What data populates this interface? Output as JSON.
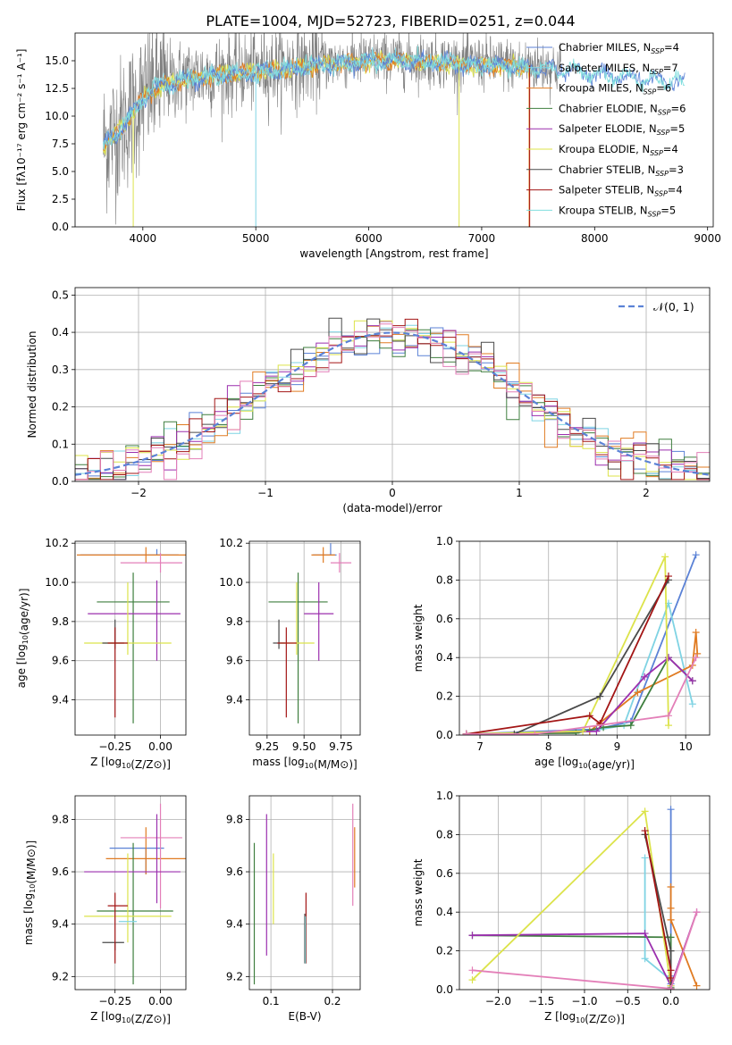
{
  "page_title": "PLATE=1004, MJD=52723, FIBERID=0251, z=0.044",
  "colors": {
    "chabrier_miles": "#5b82d6",
    "salpeter_miles": "#7fd3e3",
    "kroupa_miles": "#e07b22",
    "chabrier_elodie": "#3f7f3f",
    "salpeter_elodie": "#9b2fae",
    "kroupa_elodie": "#dce34a",
    "chabrier_stelib": "#4a4a4a",
    "salpeter_stelib": "#a31515",
    "kroupa_stelib": "#80dede",
    "pink": "#e37fb8",
    "spectrum": "#808080",
    "grid": "#b0b0b0"
  },
  "legend_spectrum": [
    {
      "name": "Chabrier MILES, N",
      "sub": "SSP",
      "val": "=4",
      "color": "#5b82d6"
    },
    {
      "name": "Salpeter MILES, N",
      "sub": "SSP",
      "val": "=7",
      "color": "#7fd3e3"
    },
    {
      "name": "Kroupa MILES, N",
      "sub": "SSP",
      "val": "=6",
      "color": "#e07b22"
    },
    {
      "name": "Chabrier ELODIE, N",
      "sub": "SSP",
      "val": "=6",
      "color": "#3f7f3f"
    },
    {
      "name": "Salpeter ELODIE, N",
      "sub": "SSP",
      "val": "=5",
      "color": "#9b2fae"
    },
    {
      "name": "Kroupa ELODIE, N",
      "sub": "SSP",
      "val": "=4",
      "color": "#dce34a"
    },
    {
      "name": "Chabrier STELIB, N",
      "sub": "SSP",
      "val": "=3",
      "color": "#4a4a4a"
    },
    {
      "name": "Salpeter STELIB, N",
      "sub": "SSP",
      "val": "=4",
      "color": "#a31515"
    },
    {
      "name": "Kroupa STELIB, N",
      "sub": "SSP",
      "val": "=5",
      "color": "#80dede"
    }
  ],
  "chart_data": [
    {
      "id": "spectrum",
      "type": "line",
      "title": "PLATE=1004, MJD=52723, FIBERID=0251, z=0.044",
      "xlabel": "wavelength [Angstrom, rest frame]",
      "ylabel": "Flux [fλ10⁻¹⁷ erg cm⁻² s⁻¹ A⁻¹]",
      "xlim": [
        3400,
        9050
      ],
      "ylim": [
        0,
        17.5
      ],
      "xticks": [
        4000,
        5000,
        6000,
        7000,
        8000,
        9000
      ],
      "yticks": [
        0.0,
        2.5,
        5.0,
        7.5,
        10.0,
        12.5,
        15.0
      ],
      "ytick_labels": [
        "0.0",
        "2.5",
        "5.0",
        "7.5",
        "10.0",
        "12.5",
        "15.0"
      ],
      "grid": false,
      "legend": "right",
      "data_range_x": [
        3650,
        8800
      ],
      "continuum": {
        "x": [
          3650,
          3800,
          3950,
          4100,
          4300,
          4600,
          5000,
          5400,
          5800,
          6200,
          6600,
          7000,
          7400,
          7800,
          8200,
          8800
        ],
        "y": [
          7.5,
          9.0,
          11.0,
          12.8,
          13.3,
          13.8,
          14.2,
          14.6,
          15.0,
          15.2,
          15.0,
          14.8,
          14.6,
          14.3,
          13.8,
          13.2
        ]
      }
    },
    {
      "id": "residuals",
      "type": "histogram",
      "xlabel": "(data-model)/error",
      "ylabel": "Normed distribution",
      "xlim": [
        -2.5,
        2.5
      ],
      "ylim": [
        0,
        0.52
      ],
      "xticks": [
        -2,
        -1,
        0,
        1,
        2
      ],
      "xtick_labels": [
        "−2",
        "−1",
        "0",
        "1",
        "2"
      ],
      "yticks": [
        0.0,
        0.1,
        0.2,
        0.3,
        0.4,
        0.5
      ],
      "ytick_labels": [
        "0.0",
        "0.1",
        "0.2",
        "0.3",
        "0.4",
        "0.5"
      ],
      "grid": true,
      "legend_label": "𝒩(0, 1)",
      "legend": "top-right",
      "bin_width": 0.1
    },
    {
      "id": "age-vs-z",
      "type": "errorbar",
      "xlabel": "Z [log10(Z/Z⊙)]",
      "ylabel": "age  [log10(age/yr)]",
      "xlim": [
        -0.47,
        0.14
      ],
      "ylim": [
        9.22,
        10.21
      ],
      "xticks": [
        -0.25,
        0.0
      ],
      "xtick_labels": [
        "−0.25",
        "0.00"
      ],
      "yticks": [
        9.4,
        9.6,
        9.8,
        10.0,
        10.2
      ],
      "ytick_labels": [
        "9.4",
        "9.6",
        "9.8",
        "10.0",
        "10.2"
      ],
      "grid": true,
      "points": [
        {
          "x": -0.02,
          "y": 10.14,
          "xerr": [
            0.42,
            0.12
          ],
          "yerr": [
            0,
            0.03
          ],
          "c": "chabrier_miles"
        },
        {
          "x": -0.08,
          "y": 10.14,
          "xerr": [
            0.38,
            0.22
          ],
          "yerr": [
            0.04,
            0.04
          ],
          "c": "kroupa_miles"
        },
        {
          "x": 0.0,
          "y": 10.1,
          "xerr": [
            0.22,
            0.12
          ],
          "yerr": [
            0.05,
            0.05
          ],
          "c": "pink"
        },
        {
          "x": -0.15,
          "y": 9.9,
          "xerr": [
            0.2,
            0.2
          ],
          "yerr": [
            0.62,
            0.15
          ],
          "c": "chabrier_elodie"
        },
        {
          "x": -0.02,
          "y": 9.84,
          "xerr": [
            0.38,
            0.13
          ],
          "yerr": [
            0.24,
            0.17
          ],
          "c": "salpeter_elodie"
        },
        {
          "x": -0.18,
          "y": 9.69,
          "xerr": [
            0.24,
            0.24
          ],
          "yerr": [
            0.06,
            0.31
          ],
          "c": "kroupa_elodie"
        },
        {
          "x": -0.25,
          "y": 9.69,
          "xerr": [
            0.07,
            0.05
          ],
          "yerr": [
            0.03,
            0.12
          ],
          "c": "chabrier_stelib"
        },
        {
          "x": -0.25,
          "y": 9.69,
          "xerr": [
            0.04,
            0.07
          ],
          "yerr": [
            0.38,
            0.08
          ],
          "c": "salpeter_stelib"
        }
      ]
    },
    {
      "id": "age-vs-mass",
      "type": "errorbar",
      "xlabel": "mass [log10(M/M⊙)]",
      "ylabel": "",
      "xlim": [
        9.13,
        9.88
      ],
      "ylim": [
        9.22,
        10.21
      ],
      "xticks": [
        9.25,
        9.5,
        9.75
      ],
      "xtick_labels": [
        "9.25",
        "9.50",
        "9.75"
      ],
      "yticks": [
        9.4,
        9.6,
        9.8,
        10.0,
        10.2
      ],
      "ytick_labels": [
        "9.4",
        "9.6",
        "9.8",
        "10.0",
        "10.2"
      ],
      "grid": true,
      "points": [
        {
          "x": 9.68,
          "y": 10.14,
          "xerr": [
            0.12,
            0.04
          ],
          "yerr": [
            0.0,
            0.06
          ],
          "c": "chabrier_miles"
        },
        {
          "x": 9.63,
          "y": 10.14,
          "xerr": [
            0.08,
            0.08
          ],
          "yerr": [
            0.04,
            0.04
          ],
          "c": "kroupa_miles"
        },
        {
          "x": 9.74,
          "y": 10.1,
          "xerr": [
            0.06,
            0.08
          ],
          "yerr": [
            0.05,
            0.05
          ],
          "c": "pink"
        },
        {
          "x": 9.46,
          "y": 9.9,
          "xerr": [
            0.2,
            0.2
          ],
          "yerr": [
            0.62,
            0.15
          ],
          "c": "chabrier_elodie"
        },
        {
          "x": 9.6,
          "y": 9.84,
          "xerr": [
            0.1,
            0.1
          ],
          "yerr": [
            0.24,
            0.16
          ],
          "c": "salpeter_elodie"
        },
        {
          "x": 9.45,
          "y": 9.69,
          "xerr": [
            0.12,
            0.12
          ],
          "yerr": [
            0.06,
            0.31
          ],
          "c": "kroupa_elodie"
        },
        {
          "x": 9.33,
          "y": 9.69,
          "xerr": [
            0.04,
            0.04
          ],
          "yerr": [
            0.03,
            0.12
          ],
          "c": "chabrier_stelib"
        },
        {
          "x": 9.38,
          "y": 9.69,
          "xerr": [
            0.06,
            0.07
          ],
          "yerr": [
            0.38,
            0.08
          ],
          "c": "salpeter_stelib"
        }
      ]
    },
    {
      "id": "weight-vs-age",
      "type": "line",
      "xlabel": "age  [log10(age/yr)]",
      "ylabel": "mass weight",
      "xlim": [
        6.7,
        10.35
      ],
      "ylim": [
        0,
        1.0
      ],
      "xticks": [
        7,
        8,
        9,
        10
      ],
      "xtick_labels": [
        "7",
        "8",
        "9",
        "10"
      ],
      "yticks": [
        0.0,
        0.2,
        0.4,
        0.6,
        0.8,
        1.0
      ],
      "ytick_labels": [
        "0.0",
        "0.2",
        "0.4",
        "0.6",
        "0.8",
        "1.0"
      ],
      "grid": true,
      "series": [
        {
          "c": "chabrier_miles",
          "x": [
            6.8,
            8.7,
            9.2,
            10.15
          ],
          "y": [
            0.005,
            0.03,
            0.07,
            0.93
          ]
        },
        {
          "c": "salpeter_miles",
          "x": [
            6.8,
            8.6,
            9.1,
            9.75,
            10.1
          ],
          "y": [
            0.005,
            0.02,
            0.05,
            0.68,
            0.16
          ]
        },
        {
          "c": "kroupa_miles",
          "x": [
            6.8,
            8.6,
            9.3,
            10.1,
            10.15,
            10.17
          ],
          "y": [
            0.005,
            0.02,
            0.22,
            0.36,
            0.53,
            0.42
          ]
        },
        {
          "c": "chabrier_elodie",
          "x": [
            6.8,
            8.4,
            8.8,
            9.2,
            9.75,
            10.1
          ],
          "y": [
            0.005,
            0.01,
            0.04,
            0.05,
            0.4,
            0.28
          ]
        },
        {
          "c": "salpeter_elodie",
          "x": [
            6.8,
            8.7,
            9.4,
            9.75,
            10.1
          ],
          "y": [
            0.005,
            0.02,
            0.3,
            0.4,
            0.28
          ]
        },
        {
          "c": "kroupa_elodie",
          "x": [
            6.8,
            8.5,
            9.7,
            9.75
          ],
          "y": [
            0.005,
            0.02,
            0.92,
            0.05
          ]
        },
        {
          "c": "chabrier_stelib",
          "x": [
            6.8,
            7.5,
            8.75,
            9.75
          ],
          "y": [
            0.005,
            0.005,
            0.2,
            0.8
          ]
        },
        {
          "c": "salpeter_stelib",
          "x": [
            6.8,
            8.6,
            8.75,
            9.75
          ],
          "y": [
            0.005,
            0.1,
            0.06,
            0.82
          ]
        },
        {
          "c": "pink",
          "x": [
            6.8,
            7.8,
            9.75,
            10.15
          ],
          "y": [
            0.005,
            0.005,
            0.1,
            0.4
          ]
        }
      ]
    },
    {
      "id": "mass-vs-z",
      "type": "errorbar",
      "xlabel": "Z [log10(Z/Z⊙)]",
      "ylabel": "mass [log10(M/M⊙)]",
      "xlim": [
        -0.47,
        0.14
      ],
      "ylim": [
        9.15,
        9.89
      ],
      "xticks": [
        -0.25,
        0.0
      ],
      "xtick_labels": [
        "−0.25",
        "0.00"
      ],
      "yticks": [
        9.2,
        9.4,
        9.6,
        9.8
      ],
      "ytick_labels": [
        "9.2",
        "9.4",
        "9.6",
        "9.8"
      ],
      "grid": true,
      "points": [
        {
          "x": -0.08,
          "y": 9.69,
          "xerr": [
            0.2,
            0.1
          ],
          "yerr": [
            0.1,
            0.0
          ],
          "c": "chabrier_miles"
        },
        {
          "x": -0.08,
          "y": 9.65,
          "xerr": [
            0.22,
            0.22
          ],
          "yerr": [
            0.06,
            0.12
          ],
          "c": "kroupa_miles"
        },
        {
          "x": 0.0,
          "y": 9.73,
          "xerr": [
            0.22,
            0.12
          ],
          "yerr": [
            0.27,
            0.13
          ],
          "c": "pink"
        },
        {
          "x": -0.15,
          "y": 9.45,
          "xerr": [
            0.2,
            0.22
          ],
          "yerr": [
            0.28,
            0.26
          ],
          "c": "chabrier_elodie"
        },
        {
          "x": -0.02,
          "y": 9.6,
          "xerr": [
            0.4,
            0.13
          ],
          "yerr": [
            0.12,
            0.22
          ],
          "c": "salpeter_elodie"
        },
        {
          "x": -0.18,
          "y": 9.43,
          "xerr": [
            0.24,
            0.24
          ],
          "yerr": [
            0.1,
            0.24
          ],
          "c": "kroupa_elodie"
        },
        {
          "x": -0.25,
          "y": 9.33,
          "xerr": [
            0.07,
            0.05
          ],
          "yerr": [
            0.03,
            0.0
          ],
          "c": "chabrier_stelib"
        },
        {
          "x": -0.25,
          "y": 9.47,
          "xerr": [
            0.04,
            0.07
          ],
          "yerr": [
            0.22,
            0.05
          ],
          "c": "salpeter_stelib"
        },
        {
          "x": -0.2,
          "y": 9.41,
          "xerr": [
            0.03,
            0.07
          ],
          "yerr": [
            0.0,
            0.0
          ],
          "c": "salpeter_miles"
        }
      ]
    },
    {
      "id": "mass-vs-ebv",
      "type": "errorbar",
      "xlabel": "E(B-V)",
      "ylabel": "",
      "xlim": [
        0.065,
        0.245
      ],
      "ylim": [
        9.15,
        9.89
      ],
      "xticks": [
        0.1,
        0.2
      ],
      "xtick_labels": [
        "0.1",
        "0.2"
      ],
      "yticks": [
        9.2,
        9.4,
        9.6,
        9.8
      ],
      "ytick_labels": [
        "9.2",
        "9.4",
        "9.6",
        "9.8"
      ],
      "grid": true,
      "points": [
        {
          "x": 0.073,
          "y": 9.45,
          "xerr": [
            0,
            0
          ],
          "yerr": [
            0.28,
            0.26
          ],
          "c": "chabrier_elodie"
        },
        {
          "x": 0.093,
          "y": 9.6,
          "xerr": [
            0,
            0
          ],
          "yerr": [
            0.32,
            0.22
          ],
          "c": "salpeter_elodie"
        },
        {
          "x": 0.104,
          "y": 9.5,
          "xerr": [
            0,
            0
          ],
          "yerr": [
            0.1,
            0.17
          ],
          "c": "kroupa_elodie"
        },
        {
          "x": 0.155,
          "y": 9.35,
          "xerr": [
            0,
            0
          ],
          "yerr": [
            0.1,
            0.09
          ],
          "c": "chabrier_stelib"
        },
        {
          "x": 0.157,
          "y": 9.47,
          "xerr": [
            0,
            0
          ],
          "yerr": [
            0.22,
            0.05
          ],
          "c": "salpeter_stelib"
        },
        {
          "x": 0.156,
          "y": 9.35,
          "xerr": [
            0,
            0
          ],
          "yerr": [
            0.1,
            0.08
          ],
          "c": "kroupa_stelib"
        },
        {
          "x": 0.233,
          "y": 9.66,
          "xerr": [
            0,
            0
          ],
          "yerr": [
            0.19,
            0.2
          ],
          "c": "pink"
        },
        {
          "x": 0.236,
          "y": 9.66,
          "xerr": [
            0,
            0
          ],
          "yerr": [
            0.12,
            0.11
          ],
          "c": "kroupa_miles"
        }
      ]
    },
    {
      "id": "weight-vs-z",
      "type": "line",
      "xlabel": "Z [log10(Z/Z⊙)]",
      "ylabel": "mass weight",
      "xlim": [
        -2.45,
        0.45
      ],
      "ylim": [
        0,
        1.0
      ],
      "xticks": [
        -2.0,
        -1.5,
        -1.0,
        -0.5,
        0.0
      ],
      "xtick_labels": [
        "−2.0",
        "−1.5",
        "−1.0",
        "−0.5",
        "0.0"
      ],
      "yticks": [
        0.0,
        0.2,
        0.4,
        0.6,
        0.8,
        1.0
      ],
      "ytick_labels": [
        "0.0",
        "0.2",
        "0.4",
        "0.6",
        "0.8",
        "1.0"
      ],
      "grid": true,
      "series": [
        {
          "c": "chabrier_miles",
          "x": [
            0.0,
            0.0,
            0.0,
            0.0
          ],
          "y": [
            0.93,
            0.07,
            0.03,
            0.005
          ]
        },
        {
          "c": "salpeter_miles",
          "x": [
            -0.3,
            -0.3,
            0.0,
            0.0
          ],
          "y": [
            0.68,
            0.16,
            0.05,
            0.02
          ]
        },
        {
          "c": "kroupa_miles",
          "x": [
            0.0,
            0.0,
            0.0,
            0.3
          ],
          "y": [
            0.53,
            0.42,
            0.36,
            0.02
          ]
        },
        {
          "c": "chabrier_elodie",
          "x": [
            -2.3,
            0.0,
            0.0,
            0.0
          ],
          "y": [
            0.28,
            0.27,
            0.05,
            0.01
          ]
        },
        {
          "c": "salpeter_elodie",
          "x": [
            -2.3,
            -0.3,
            0.0,
            0.3
          ],
          "y": [
            0.28,
            0.29,
            0.02,
            0.4
          ]
        },
        {
          "c": "kroupa_elodie",
          "x": [
            -2.3,
            -0.3,
            0.0,
            0.0
          ],
          "y": [
            0.05,
            0.92,
            0.02,
            0.005
          ]
        },
        {
          "c": "chabrier_stelib",
          "x": [
            -0.3,
            0.0,
            0.0
          ],
          "y": [
            0.8,
            0.2,
            0.005
          ]
        },
        {
          "c": "salpeter_stelib",
          "x": [
            -0.3,
            0.0,
            0.0
          ],
          "y": [
            0.82,
            0.1,
            0.06
          ]
        },
        {
          "c": "pink",
          "x": [
            -2.3,
            0.0,
            0.3
          ],
          "y": [
            0.1,
            0.005,
            0.4
          ]
        }
      ]
    }
  ]
}
